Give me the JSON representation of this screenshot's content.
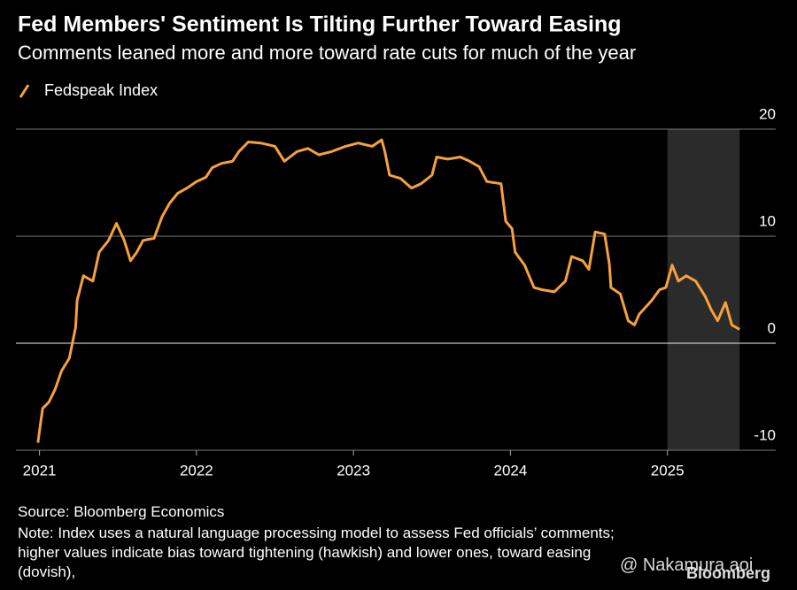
{
  "chart_data": {
    "type": "line",
    "title": "Fed Members' Sentiment Is Tilting Further Toward Easing",
    "subtitle": "Comments leaned more and more toward rate cuts for much of the year",
    "x": [
      2020.99,
      2021.02,
      2021.06,
      2021.1,
      2021.14,
      2021.19,
      2021.23,
      2021.24,
      2021.28,
      2021.34,
      2021.38,
      2021.44,
      2021.49,
      2021.54,
      2021.58,
      2021.62,
      2021.66,
      2021.73,
      2021.78,
      2021.83,
      2021.88,
      2021.94,
      2022.0,
      2022.06,
      2022.1,
      2022.16,
      2022.23,
      2022.27,
      2022.33,
      2022.41,
      2022.5,
      2022.56,
      2022.64,
      2022.71,
      2022.78,
      2022.86,
      2022.95,
      2023.03,
      2023.12,
      2023.18,
      2023.2,
      2023.23,
      2023.3,
      2023.37,
      2023.43,
      2023.5,
      2023.53,
      2023.6,
      2023.68,
      2023.74,
      2023.8,
      2023.85,
      2023.94,
      2023.97,
      2024.01,
      2024.03,
      2024.09,
      2024.15,
      2024.2,
      2024.28,
      2024.35,
      2024.39,
      2024.46,
      2024.5,
      2024.54,
      2024.6,
      2024.63,
      2024.64,
      2024.7,
      2024.75,
      2024.79,
      2024.82,
      2024.9,
      2024.95,
      2024.99,
      2025.03,
      2025.07,
      2025.12,
      2025.18,
      2025.24,
      2025.28,
      2025.32,
      2025.37,
      2025.41,
      2025.46
    ],
    "series": [
      {
        "name": "Fedspeak Index",
        "color": "#f7a13c",
        "values": [
          -9.3,
          -6.1,
          -5.5,
          -4.3,
          -2.6,
          -1.4,
          1.5,
          4.0,
          6.3,
          5.8,
          8.5,
          9.6,
          11.2,
          9.6,
          7.7,
          8.5,
          9.6,
          9.8,
          11.8,
          13.1,
          14.0,
          14.5,
          15.1,
          15.5,
          16.4,
          16.8,
          17.0,
          17.9,
          18.8,
          18.7,
          18.4,
          17.0,
          17.9,
          18.2,
          17.6,
          17.9,
          18.4,
          18.7,
          18.4,
          19.0,
          17.9,
          15.7,
          15.4,
          14.5,
          14.9,
          15.7,
          17.4,
          17.2,
          17.4,
          17.0,
          16.5,
          15.1,
          14.9,
          11.4,
          10.7,
          8.5,
          7.3,
          5.2,
          5.0,
          4.8,
          5.8,
          8.1,
          7.7,
          6.9,
          10.4,
          10.2,
          7.4,
          5.2,
          4.6,
          2.1,
          1.7,
          2.7,
          4.0,
          5.0,
          5.2,
          7.3,
          5.8,
          6.3,
          5.8,
          4.4,
          3.1,
          2.1,
          3.8,
          1.7,
          1.3
        ]
      }
    ],
    "xlim": [
      2020.85,
      2025.69
    ],
    "xticks": [
      2021,
      2022,
      2023,
      2024,
      2025
    ],
    "ylim": [
      -10,
      20
    ],
    "yticks": [
      20,
      10,
      0,
      -10
    ],
    "shaded_range": [
      2025.0,
      2025.46
    ],
    "grid": true,
    "source": "Source: Bloomberg Economics",
    "note": "Note: Index uses a natural language processing model to assess Fed officials’ comments; higher values indicate bias toward tightening (hawkish) and lower ones, toward easing (dovish),",
    "logo": "Bloomberg",
    "watermark": "@ Nakamura aoi"
  }
}
